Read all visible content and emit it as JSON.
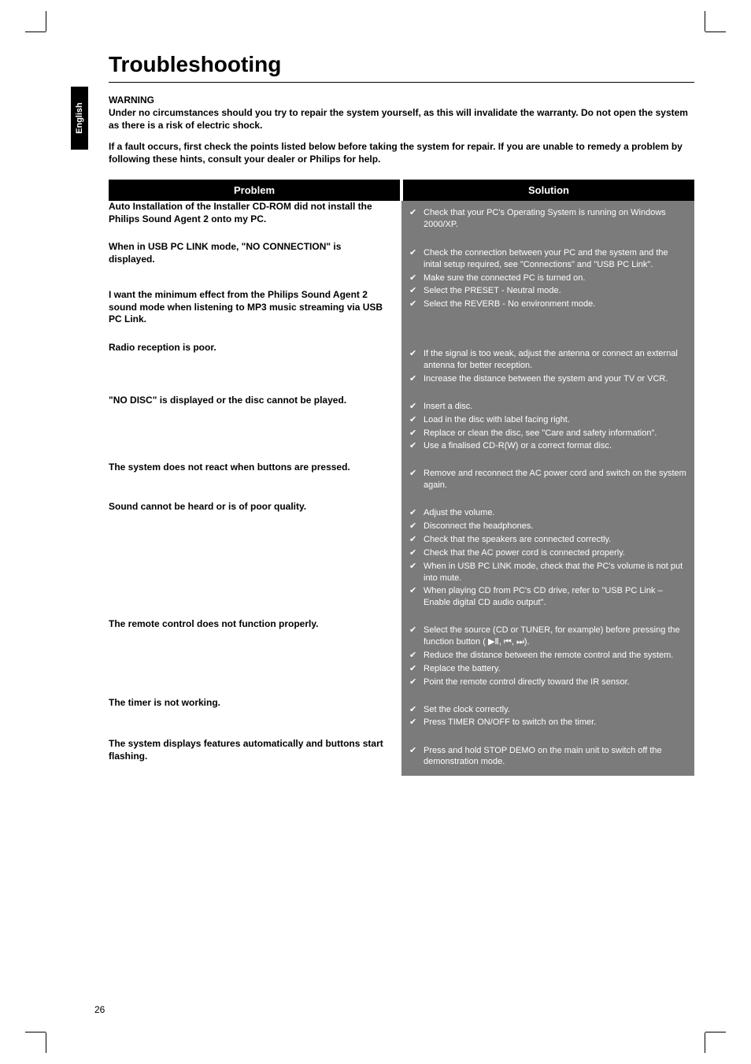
{
  "lang_tab": "English",
  "title": "Troubleshooting",
  "warning": {
    "heading": "WARNING",
    "p1": "Under no circumstances should you try to repair the system yourself, as this will invalidate the warranty.  Do not open the system as there is a risk of electric shock.",
    "p2": "If a fault occurs, first check the points listed below before taking the system for repair. If you are unable to remedy a problem by following these hints, consult your dealer or Philips for help."
  },
  "columns": {
    "problem": "Problem",
    "solution": "Solution"
  },
  "rows": [
    {
      "group": [
        "Auto Installation of the Installer CD-ROM did not install the Philips Sound Agent 2 onto my PC."
      ],
      "solutions": [
        "Check that your PC's Operating System is running on Windows 2000/XP."
      ]
    },
    {
      "group": [
        "When in USB PC LINK mode, \"NO CONNECTION\" is displayed.",
        "",
        "I want the minimum effect from the Philips Sound Agent 2 sound mode when listening to MP3 music streaming via USB PC Link."
      ],
      "solutions": [
        "Check the connection between your PC and the system and the inital setup required, see \"Connections\" and \"USB PC Link\".",
        "Make sure the connected PC is turned on.",
        "Select the PRESET - Neutral mode.",
        "Select the REVERB - No environment mode."
      ]
    },
    {
      "group": [
        "Radio reception is poor."
      ],
      "solutions": [
        "If the signal is too weak, adjust the antenna or connect an external antenna for better reception.",
        "Increase the distance between the system and your TV or VCR."
      ]
    },
    {
      "group": [
        "\"NO DISC\" is displayed or the disc cannot be played."
      ],
      "solutions": [
        "Insert a disc.",
        "Load in the disc with label facing right.",
        "Replace or clean the disc, see \"Care and safety information\".",
        "Use a finalised CD-R(W) or a correct format disc."
      ]
    },
    {
      "group": [
        "The system does not react when buttons are pressed."
      ],
      "solutions": [
        "Remove and reconnect the AC power cord and switch on the system again."
      ]
    },
    {
      "group": [
        "Sound cannot be heard or is of poor quality."
      ],
      "solutions": [
        "Adjust the volume.",
        "Disconnect the headphones.",
        "Check that the speakers are connected correctly.",
        "Check that the AC power cord is connected properly.",
        "When in USB PC LINK mode, check that the PC's volume is not put into mute.",
        "When playing CD from PC's CD drive, refer to \"USB PC Link – Enable digital CD audio output\"."
      ]
    },
    {
      "group": [
        "The remote control does not function properly."
      ],
      "solutions": [
        "Select the source (CD or TUNER, for example) before pressing the function button ( ▶Ⅱ, ⏮, ⏭).",
        "Reduce the distance between the remote control and the system.",
        "Replace the battery.",
        "Point the remote control directly toward the IR sensor."
      ]
    },
    {
      "group": [
        "The timer is not working."
      ],
      "solutions": [
        "Set the clock correctly.",
        "Press TIMER ON/OFF to switch on the timer."
      ]
    },
    {
      "group": [
        "The system displays features automatically and buttons start flashing."
      ],
      "solutions": [
        "Press and hold STOP DEMO on the main unit to switch off the demonstration mode."
      ]
    }
  ],
  "page_number": "26",
  "colors": {
    "header_bg": "#000000",
    "header_fg": "#ffffff",
    "solution_bg": "#7b7b7b",
    "solution_fg": "#ffffff"
  }
}
